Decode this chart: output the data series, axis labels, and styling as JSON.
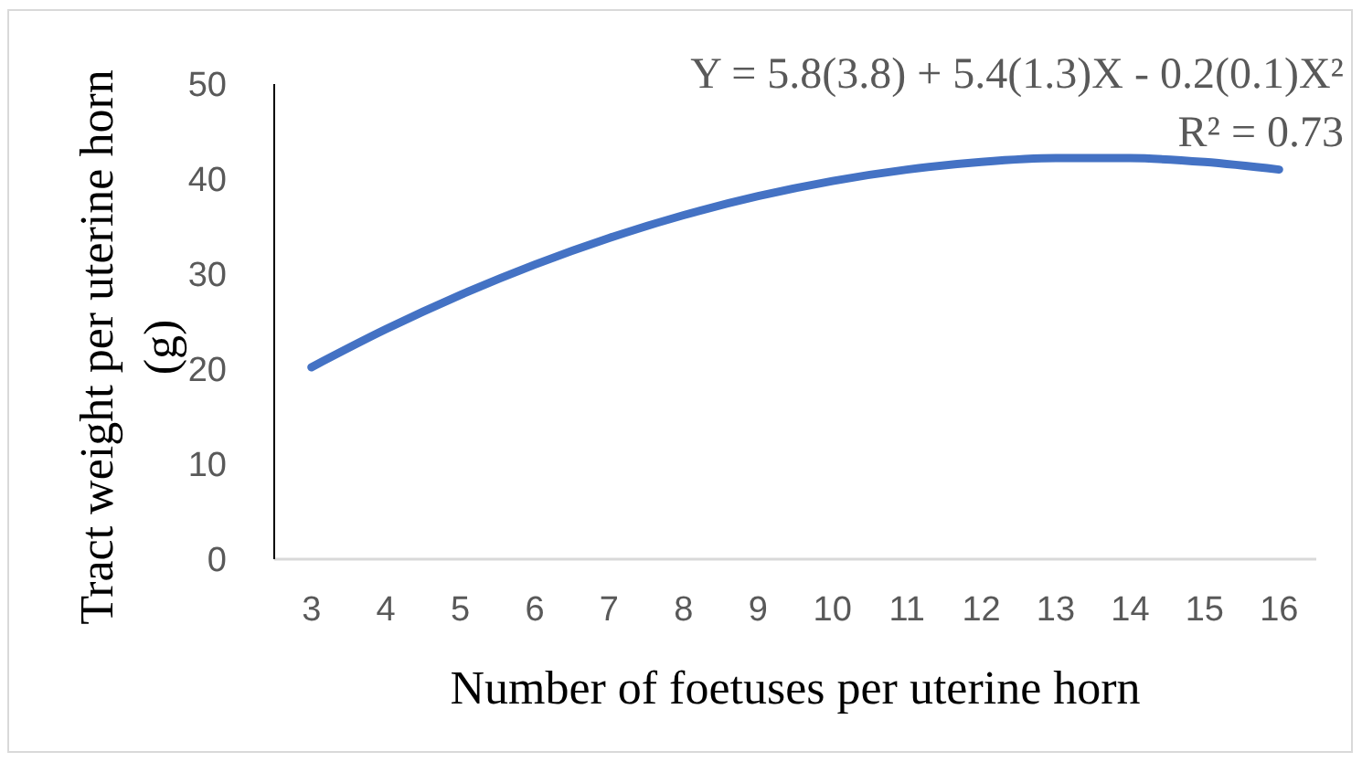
{
  "chart_data": {
    "type": "line",
    "xlabel": "Number of foetuses per uterine horn",
    "ylabel": "Tract weight per uterine horn (g)",
    "annotations": [
      "Y = 5.8(3.8) + 5.4(1.3)X - 0.2(0.1)X²",
      "R² = 0.73"
    ],
    "categories": [
      "3",
      "4",
      "5",
      "6",
      "7",
      "8",
      "9",
      "10",
      "11",
      "12",
      "13",
      "14",
      "15",
      "16"
    ],
    "values": [
      20.2,
      24.2,
      27.8,
      31.0,
      33.8,
      36.2,
      38.2,
      39.8,
      41.0,
      41.8,
      42.2,
      42.2,
      41.8,
      41.0
    ],
    "color": "#4472c4",
    "ylim": [
      0,
      50
    ],
    "yticks": [
      0,
      10,
      20,
      30,
      40,
      50
    ]
  }
}
